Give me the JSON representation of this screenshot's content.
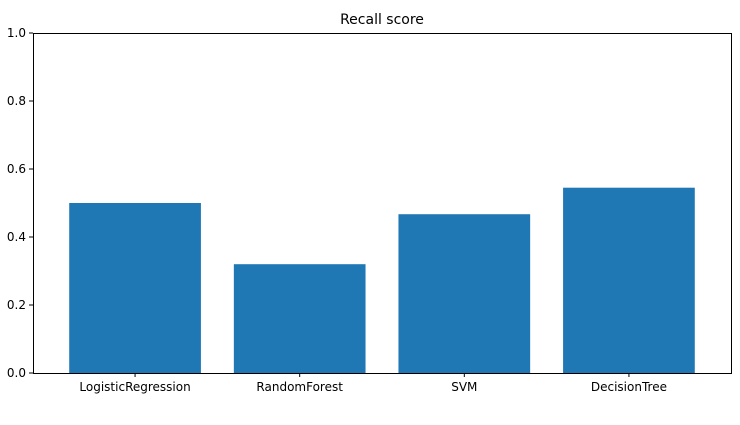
{
  "chart_data": {
    "type": "bar",
    "title": "Recall score",
    "xlabel": "",
    "ylabel": "",
    "categories": [
      "LogisticRegression",
      "RandomForest",
      "SVM",
      "DecisionTree"
    ],
    "values": [
      0.5,
      0.32,
      0.467,
      0.545
    ],
    "ylim": [
      0.0,
      1.0
    ],
    "yticks": [
      "0.0",
      "0.2",
      "0.4",
      "0.6",
      "0.8",
      "1.0"
    ],
    "grid": false,
    "bar_color": "#1f77b4"
  }
}
